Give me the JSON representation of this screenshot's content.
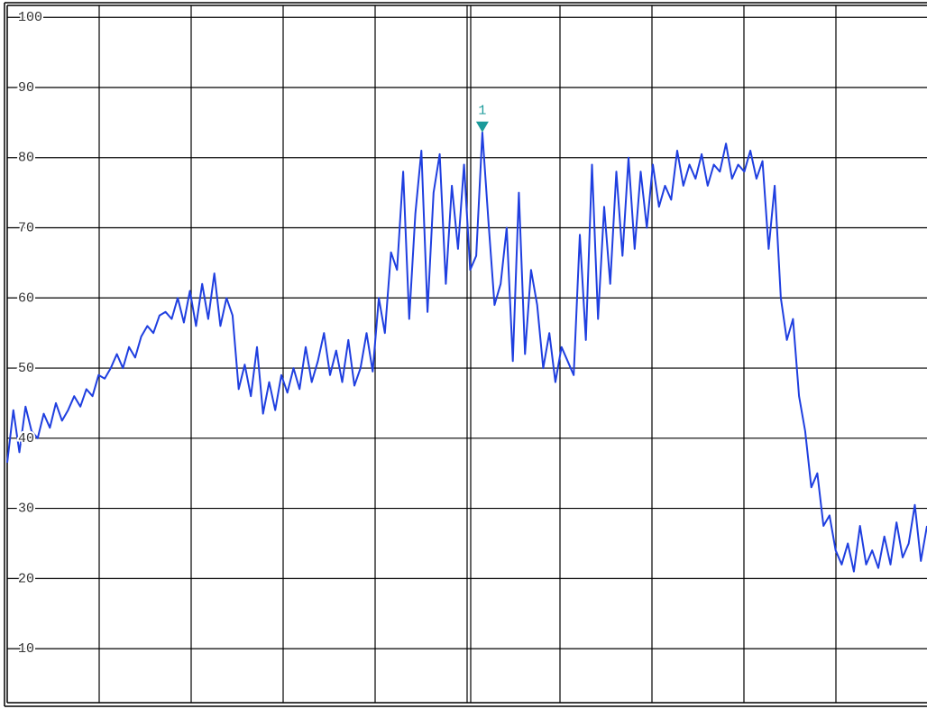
{
  "chart_data": {
    "type": "line",
    "values": [
      36.5,
      44,
      38,
      44.5,
      41,
      40,
      43.5,
      41.5,
      45,
      42.5,
      44,
      46,
      44.5,
      47,
      46,
      49,
      48.5,
      50,
      52,
      50,
      53,
      51.5,
      54.5,
      56,
      55,
      57.5,
      58,
      57,
      60,
      56.5,
      61,
      56,
      62,
      57,
      63.5,
      56,
      60,
      57.5,
      47,
      50.5,
      46,
      53,
      43.5,
      48,
      44,
      49,
      46.5,
      50,
      47,
      53,
      48,
      51,
      55,
      49,
      52.5,
      48,
      54,
      47.5,
      50,
      55,
      49.5,
      60,
      55,
      66.5,
      64,
      78,
      57,
      72,
      81,
      58,
      75,
      80.5,
      62,
      76,
      67,
      79,
      64,
      66,
      83.6,
      71,
      59,
      62,
      70,
      51,
      75,
      52,
      64,
      59,
      50,
      55,
      48,
      53,
      51,
      49,
      69,
      54,
      79,
      57,
      73,
      62,
      78,
      66,
      80,
      67,
      78,
      70,
      79,
      73,
      76,
      74,
      81,
      76,
      79,
      77,
      80.5,
      76,
      79,
      78,
      82,
      77,
      79,
      78,
      81,
      77,
      79.5,
      67,
      76,
      60,
      54,
      57,
      46,
      41,
      33,
      35,
      27.5,
      29,
      24,
      22,
      25,
      21,
      27.5,
      22,
      24,
      21.5,
      26,
      22,
      28,
      23,
      25,
      30.5,
      22.5,
      27.5
    ],
    "color": "#1f3fe0",
    "ylim": [
      2.3,
      101.7
    ],
    "yticks": [
      10,
      20,
      30,
      40,
      50,
      60,
      70,
      80,
      90,
      100
    ],
    "grid": true,
    "marker": {
      "label": "1",
      "value": 83.6,
      "color": "#1a9a9a"
    }
  }
}
